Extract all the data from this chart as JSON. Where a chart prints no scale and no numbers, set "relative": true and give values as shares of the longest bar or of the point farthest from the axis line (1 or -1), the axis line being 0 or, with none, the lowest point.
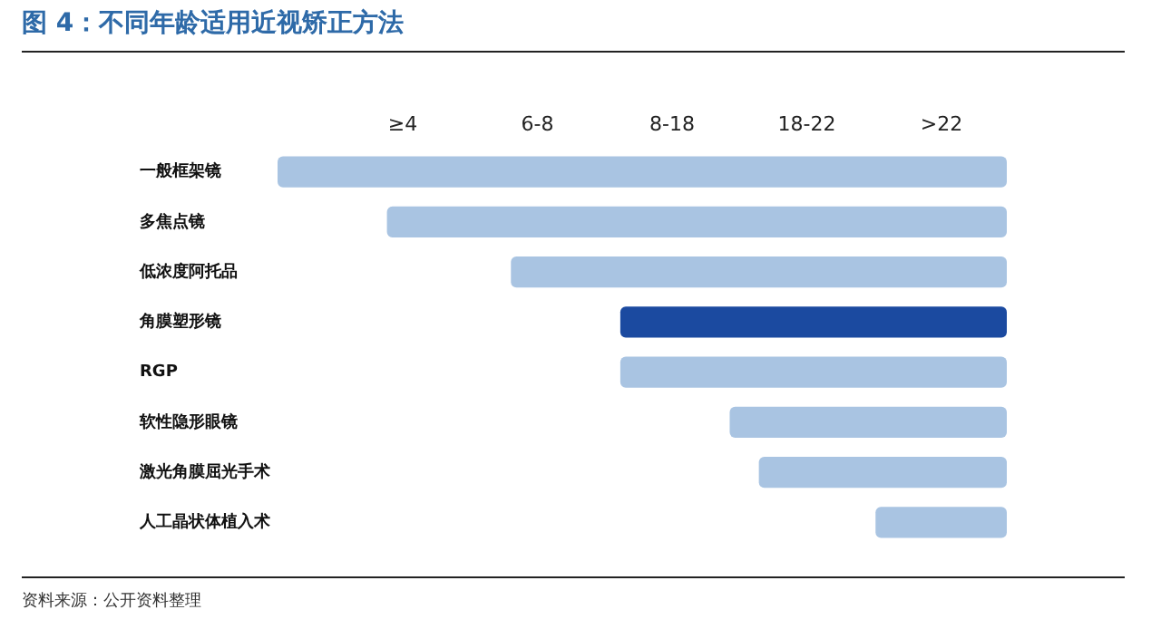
{
  "chart_data": {
    "type": "bar",
    "orientation": "horizontal",
    "relative": true,
    "title": "图 4：不同年龄适用近视矫正方法",
    "categories": [
      "一般框架镜",
      "多焦点镜",
      "低浓度阿托品",
      "角膜塑形镜",
      "RGP",
      "软性隐形眼镜",
      "激光角膜屈光手术",
      "人工晶状体植入术"
    ],
    "values": [
      1,
      0.85,
      0.68,
      0.53,
      0.53,
      0.38,
      0.34,
      0.18
    ],
    "colors": [
      "#a9c4e2",
      "#a9c4e2",
      "#a9c4e2",
      "#1b4aa0",
      "#a9c4e2",
      "#a9c4e2",
      "#a9c4e2",
      "#a9c4e2"
    ],
    "legend": false,
    "annotations": [
      "≥4",
      "6-8",
      "8-18",
      "18-22",
      ">22",
      "资料来源：公开资料整理"
    ]
  }
}
